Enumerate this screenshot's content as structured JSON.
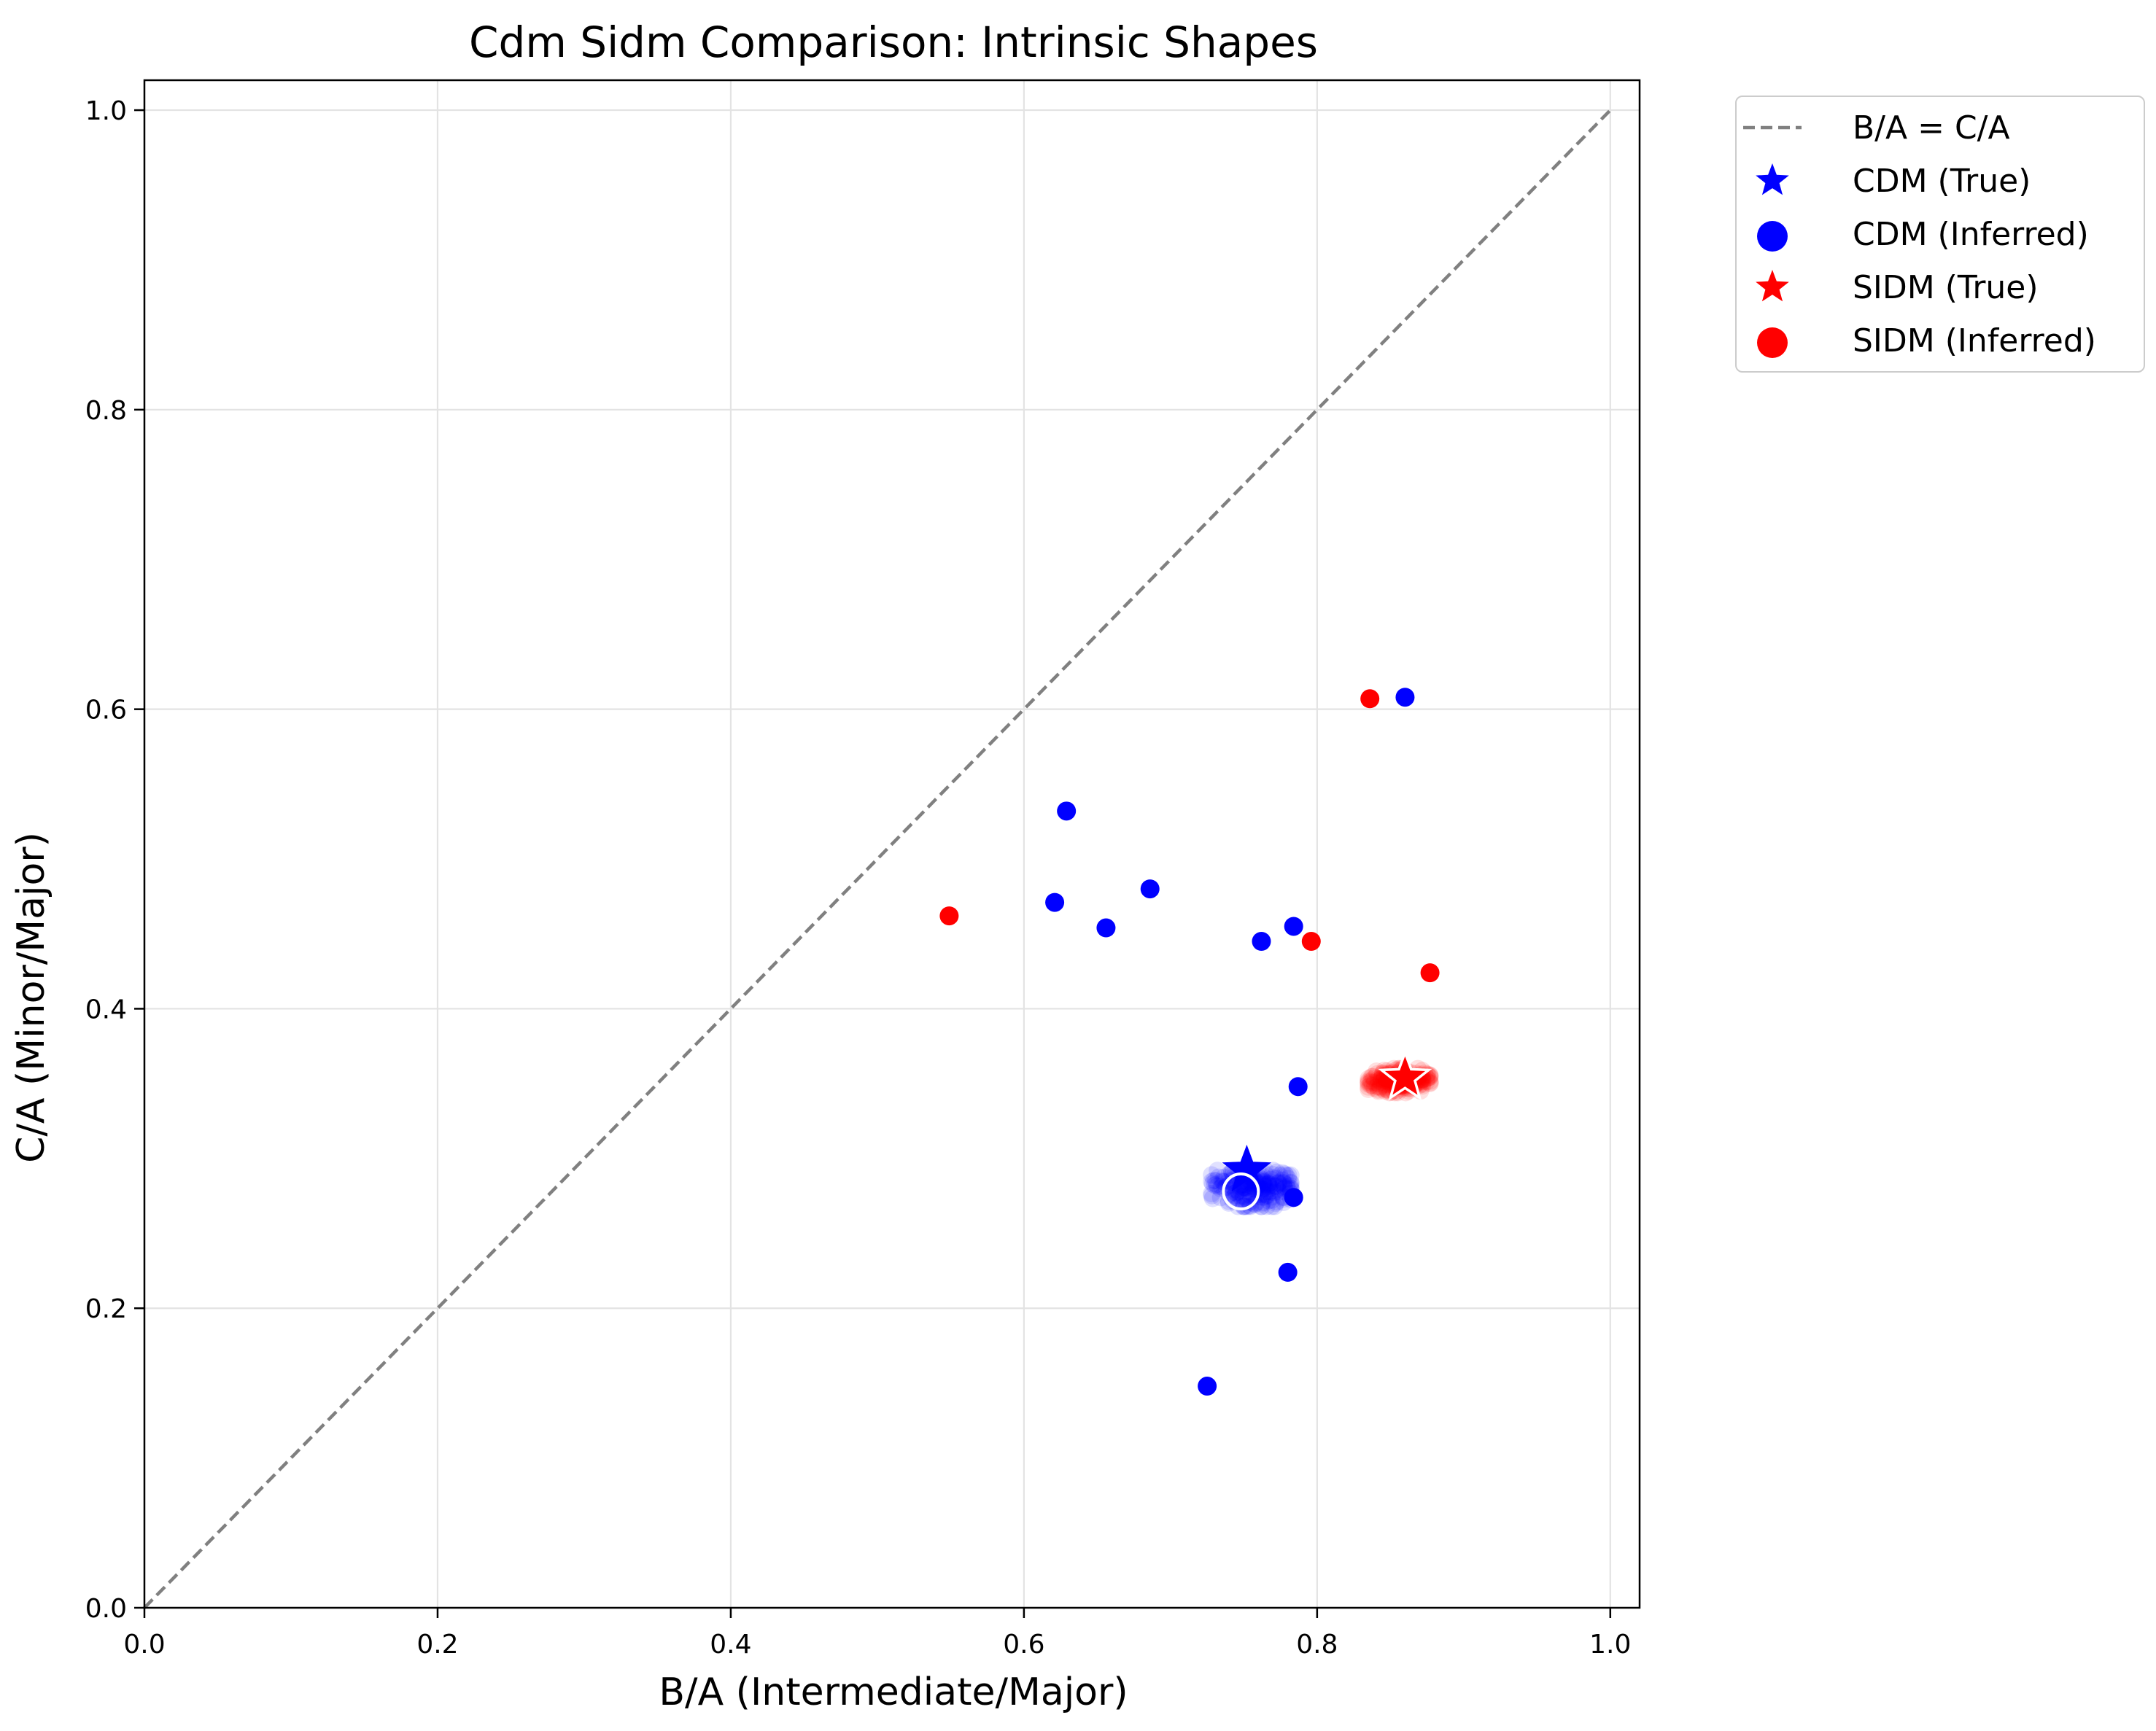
{
  "chart_data": {
    "type": "scatter",
    "title": "Cdm Sidm Comparison: Intrinsic Shapes",
    "xlabel": "B/A (Intermediate/Major)",
    "ylabel": "C/A (Minor/Major)",
    "xlim": [
      0.0,
      1.02
    ],
    "ylim": [
      0.0,
      1.02
    ],
    "xticks": [
      "0.0",
      "0.2",
      "0.4",
      "0.6",
      "0.8",
      "1.0"
    ],
    "yticks": [
      "0.0",
      "0.2",
      "0.4",
      "0.6",
      "0.8",
      "1.0"
    ],
    "grid": true,
    "legend_position": "outside-upper-right",
    "colors": {
      "cdm": "#0000ff",
      "sidm": "#ff0000",
      "reference_line": "#808080"
    },
    "reference_line": {
      "label": "B/A = C/A",
      "x": [
        0.0,
        1.0
      ],
      "y": [
        0.0,
        1.0
      ],
      "style": "dashed"
    },
    "series": [
      {
        "name": "CDM (Inferred)",
        "marker": "circle",
        "color": "#0000ff",
        "points": [
          [
            0.86,
            0.608
          ],
          [
            0.629,
            0.532
          ],
          [
            0.621,
            0.471
          ],
          [
            0.686,
            0.48
          ],
          [
            0.656,
            0.454
          ],
          [
            0.784,
            0.455
          ],
          [
            0.762,
            0.445
          ],
          [
            0.787,
            0.348
          ],
          [
            0.784,
            0.274
          ],
          [
            0.78,
            0.224
          ],
          [
            0.725,
            0.148
          ]
        ],
        "cluster": {
          "center": [
            0.757,
            0.28
          ],
          "x_range": [
            0.728,
            0.782
          ],
          "y_range": [
            0.268,
            0.292
          ],
          "count": 220
        }
      },
      {
        "name": "SIDM (Inferred)",
        "marker": "circle",
        "color": "#ff0000",
        "points": [
          [
            0.836,
            0.607
          ],
          [
            0.549,
            0.462
          ],
          [
            0.796,
            0.445
          ],
          [
            0.877,
            0.424
          ]
        ],
        "cluster": {
          "center": [
            0.857,
            0.352
          ],
          "x_range": [
            0.835,
            0.877
          ],
          "y_range": [
            0.344,
            0.36
          ],
          "count": 220
        }
      },
      {
        "name": "CDM (True)",
        "marker": "star",
        "color": "#0000ff",
        "points": [
          [
            0.752,
            0.292
          ]
        ]
      },
      {
        "name": "SIDM (True)",
        "marker": "star",
        "color": "#ff0000",
        "points": [
          [
            0.86,
            0.354
          ]
        ]
      }
    ],
    "mean_markers": [
      {
        "series": "CDM",
        "marker": "hollow-circle",
        "color": "#ffffff",
        "point": [
          0.748,
          0.278
        ]
      },
      {
        "series": "SIDM",
        "marker": "hollow-star",
        "color": "#ffffff",
        "point": [
          0.86,
          0.354
        ]
      }
    ],
    "legend": [
      "B/A = C/A",
      "CDM (True)",
      "CDM (Inferred)",
      "SIDM (True)",
      "SIDM (Inferred)"
    ]
  }
}
